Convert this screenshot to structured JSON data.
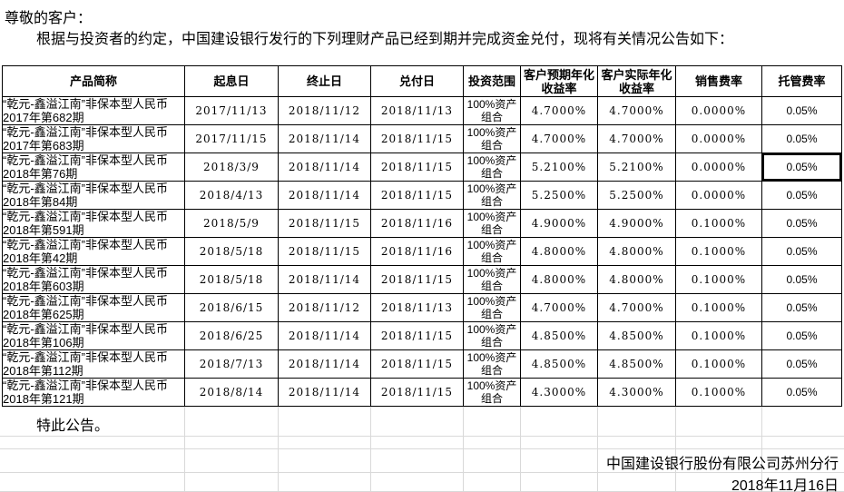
{
  "page": {
    "greeting": "尊敬的客户：",
    "intro": "根据与投资者的约定，中国建设银行发行的下列理财产品已经到期并完成资金兑付，现将有关情况公告如下：",
    "closing": "特此公告。",
    "signature": "中国建设银行股份有限公司苏州分行",
    "date": "2018年11月16日"
  },
  "table": {
    "headers": [
      "产品简称",
      "起息日",
      "终止日",
      "兑付日",
      "投资范围",
      "客户预期年化收益率",
      "客户实际年化收益率",
      "销售费率",
      "托管费率"
    ],
    "selected_cell": {
      "row": 2,
      "col": 8
    },
    "rows": [
      {
        "name_line1": "“乾元-鑫溢江南”非保本型人民币",
        "name_line2": "2017年第682期",
        "start": "2017/11/13",
        "end": "2018/11/12",
        "redeem": "2018/11/13",
        "scope": "100%资产组合",
        "expected": "4.7000%",
        "actual": "4.7000%",
        "sales_fee": "0.0000%",
        "custody_fee": "0.05%"
      },
      {
        "name_line1": "“乾元-鑫溢江南”非保本型人民币",
        "name_line2": "2017年第683期",
        "start": "2017/11/15",
        "end": "2018/11/14",
        "redeem": "2018/11/15",
        "scope": "100%资产组合",
        "expected": "4.7000%",
        "actual": "4.7000%",
        "sales_fee": "0.0000%",
        "custody_fee": "0.05%"
      },
      {
        "name_line1": "“乾元-鑫溢江南”非保本型人民币",
        "name_line2": "2018年第76期",
        "start": "2018/3/9",
        "end": "2018/11/14",
        "redeem": "2018/11/15",
        "scope": "100%资产组合",
        "expected": "5.2100%",
        "actual": "5.2100%",
        "sales_fee": "0.0000%",
        "custody_fee": "0.05%"
      },
      {
        "name_line1": "“乾元-鑫溢江南”非保本型人民币",
        "name_line2": "2018年第84期",
        "start": "2018/4/13",
        "end": "2018/11/14",
        "redeem": "2018/11/15",
        "scope": "100%资产组合",
        "expected": "5.2500%",
        "actual": "5.2500%",
        "sales_fee": "0.0000%",
        "custody_fee": "0.05%"
      },
      {
        "name_line1": "“乾元-鑫溢江南”非保本型人民币",
        "name_line2": "2018年第591期",
        "start": "2018/5/9",
        "end": "2018/11/15",
        "redeem": "2018/11/16",
        "scope": "100%资产组合",
        "expected": "4.9000%",
        "actual": "4.9000%",
        "sales_fee": "0.1000%",
        "custody_fee": "0.05%"
      },
      {
        "name_line1": "“乾元-鑫溢江南”非保本型人民币",
        "name_line2": "2018年第42期",
        "start": "2018/5/18",
        "end": "2018/11/15",
        "redeem": "2018/11/16",
        "scope": "100%资产组合",
        "expected": "4.8000%",
        "actual": "4.8000%",
        "sales_fee": "0.1000%",
        "custody_fee": "0.05%"
      },
      {
        "name_line1": "“乾元-鑫溢江南”非保本型人民币",
        "name_line2": "2018年第603期",
        "start": "2018/5/18",
        "end": "2018/11/14",
        "redeem": "2018/11/15",
        "scope": "100%资产组合",
        "expected": "4.8000%",
        "actual": "4.8000%",
        "sales_fee": "0.1000%",
        "custody_fee": "0.05%"
      },
      {
        "name_line1": "“乾元-鑫溢江南”非保本型人民币",
        "name_line2": "2018年第625期",
        "start": "2018/6/15",
        "end": "2018/11/12",
        "redeem": "2018/11/13",
        "scope": "100%资产组合",
        "expected": "4.7000%",
        "actual": "4.7000%",
        "sales_fee": "0.1000%",
        "custody_fee": "0.05%"
      },
      {
        "name_line1": "“乾元-鑫溢江南”非保本型人民币",
        "name_line2": "2018年第106期",
        "start": "2018/6/25",
        "end": "2018/11/14",
        "redeem": "2018/11/15",
        "scope": "100%资产组合",
        "expected": "4.8500%",
        "actual": "4.8500%",
        "sales_fee": "0.1000%",
        "custody_fee": "0.05%"
      },
      {
        "name_line1": "“乾元-鑫溢江南”非保本型人民币",
        "name_line2": "2018年第112期",
        "start": "2018/7/13",
        "end": "2018/11/14",
        "redeem": "2018/11/15",
        "scope": "100%资产组合",
        "expected": "4.8500%",
        "actual": "4.8500%",
        "sales_fee": "0.1000%",
        "custody_fee": "0.05%"
      },
      {
        "name_line1": "“乾元-鑫溢江南”非保本型人民币",
        "name_line2": "2018年第121期",
        "start": "2018/8/14",
        "end": "2018/11/14",
        "redeem": "2018/11/15",
        "scope": "100%资产组合",
        "expected": "4.3000%",
        "actual": "4.3000%",
        "sales_fee": "0.1000%",
        "custody_fee": "0.05%"
      }
    ]
  }
}
